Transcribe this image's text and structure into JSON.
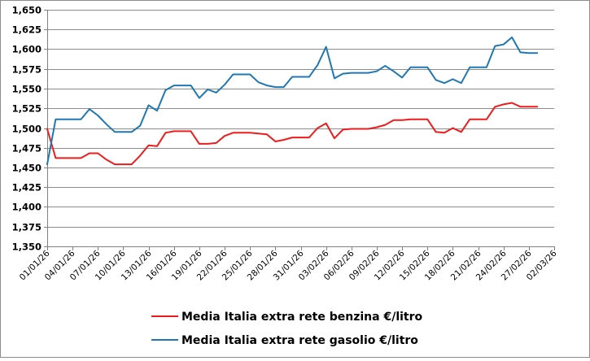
{
  "chart_data": {
    "type": "line",
    "title": "",
    "xlabel": "",
    "ylabel": "",
    "ylim": [
      1.35,
      1.65
    ],
    "ytick_step": 0.025,
    "xlim": [
      "2026-01-01",
      "2026-03-02"
    ],
    "grid": "horizontal",
    "legend_position": "bottom",
    "y_tick_labels": [
      "1,350",
      "1,375",
      "1,400",
      "1,425",
      "1,450",
      "1,475",
      "1,500",
      "1,525",
      "1,550",
      "1,575",
      "1,600",
      "1,625",
      "1,650"
    ],
    "x_tick_labels": [
      "01/01/26",
      "04/01/26",
      "07/01/26",
      "10/01/26",
      "13/01/26",
      "16/01/26",
      "19/01/26",
      "22/01/26",
      "25/01/26",
      "28/01/26",
      "31/01/26",
      "03/02/26",
      "06/02/26",
      "09/02/26",
      "12/02/26",
      "15/02/26",
      "18/02/26",
      "21/02/26",
      "24/02/26",
      "27/02/26",
      "02/03/26"
    ],
    "series": [
      {
        "name": "Media Italia extra rete benzina €/litro",
        "color": "#ee1c1c",
        "x": [
          "2026-01-01",
          "2026-01-02",
          "2026-01-03",
          "2026-01-04",
          "2026-01-05",
          "2026-01-06",
          "2026-01-07",
          "2026-01-08",
          "2026-01-09",
          "2026-01-10",
          "2026-01-11",
          "2026-01-12",
          "2026-01-13",
          "2026-01-14",
          "2026-01-15",
          "2026-01-16",
          "2026-01-17",
          "2026-01-18",
          "2026-01-19",
          "2026-01-20",
          "2026-01-21",
          "2026-01-22",
          "2026-01-23",
          "2026-01-24",
          "2026-01-25",
          "2026-01-26",
          "2026-01-27",
          "2026-01-28",
          "2026-01-29",
          "2026-01-30",
          "2026-01-31",
          "2026-02-01",
          "2026-02-02",
          "2026-02-03",
          "2026-02-04",
          "2026-02-05",
          "2026-02-06",
          "2026-02-07",
          "2026-02-08",
          "2026-02-09",
          "2026-02-10",
          "2026-02-11",
          "2026-02-12",
          "2026-02-13",
          "2026-02-14",
          "2026-02-15",
          "2026-02-16",
          "2026-02-17",
          "2026-02-18",
          "2026-02-19",
          "2026-02-20",
          "2026-02-21",
          "2026-02-22",
          "2026-02-23",
          "2026-02-24",
          "2026-02-25",
          "2026-02-26",
          "2026-02-27",
          "2026-02-28"
        ],
        "values": [
          1.499,
          1.462,
          1.462,
          1.462,
          1.462,
          1.468,
          1.468,
          1.46,
          1.454,
          1.454,
          1.454,
          1.465,
          1.478,
          1.477,
          1.494,
          1.496,
          1.496,
          1.496,
          1.48,
          1.48,
          1.481,
          1.49,
          1.494,
          1.494,
          1.494,
          1.493,
          1.492,
          1.483,
          1.485,
          1.488,
          1.488,
          1.488,
          1.5,
          1.506,
          1.487,
          1.498,
          1.499,
          1.499,
          1.499,
          1.501,
          1.504,
          1.51,
          1.51,
          1.511,
          1.511,
          1.511,
          1.495,
          1.494,
          1.5,
          1.495,
          1.511,
          1.511,
          1.511,
          1.527,
          1.53,
          1.532,
          1.527,
          1.527,
          1.527
        ]
      },
      {
        "name": "Media Italia extra rete gasolio €/litro",
        "color": "#1f77b4",
        "x": [
          "2026-01-01",
          "2026-01-02",
          "2026-01-03",
          "2026-01-04",
          "2026-01-05",
          "2026-01-06",
          "2026-01-07",
          "2026-01-08",
          "2026-01-09",
          "2026-01-10",
          "2026-01-11",
          "2026-01-12",
          "2026-01-13",
          "2026-01-14",
          "2026-01-15",
          "2026-01-16",
          "2026-01-17",
          "2026-01-18",
          "2026-01-19",
          "2026-01-20",
          "2026-01-21",
          "2026-01-22",
          "2026-01-23",
          "2026-01-24",
          "2026-01-25",
          "2026-01-26",
          "2026-01-27",
          "2026-01-28",
          "2026-01-29",
          "2026-01-30",
          "2026-01-31",
          "2026-02-01",
          "2026-02-02",
          "2026-02-03",
          "2026-02-04",
          "2026-02-05",
          "2026-02-06",
          "2026-02-07",
          "2026-02-08",
          "2026-02-09",
          "2026-02-10",
          "2026-02-11",
          "2026-02-12",
          "2026-02-13",
          "2026-02-14",
          "2026-02-15",
          "2026-02-16",
          "2026-02-17",
          "2026-02-18",
          "2026-02-19",
          "2026-02-20",
          "2026-02-21",
          "2026-02-22",
          "2026-02-23",
          "2026-02-24",
          "2026-02-25",
          "2026-02-26",
          "2026-02-27",
          "2026-02-28"
        ],
        "values": [
          1.454,
          1.511,
          1.511,
          1.511,
          1.511,
          1.524,
          1.516,
          1.505,
          1.495,
          1.495,
          1.495,
          1.503,
          1.529,
          1.522,
          1.548,
          1.554,
          1.554,
          1.554,
          1.538,
          1.549,
          1.545,
          1.555,
          1.568,
          1.568,
          1.568,
          1.558,
          1.554,
          1.552,
          1.552,
          1.565,
          1.565,
          1.565,
          1.58,
          1.603,
          1.563,
          1.569,
          1.57,
          1.57,
          1.57,
          1.572,
          1.579,
          1.572,
          1.564,
          1.577,
          1.577,
          1.577,
          1.561,
          1.557,
          1.562,
          1.557,
          1.577,
          1.577,
          1.577,
          1.604,
          1.606,
          1.615,
          1.596,
          1.595,
          1.595
        ]
      }
    ]
  }
}
